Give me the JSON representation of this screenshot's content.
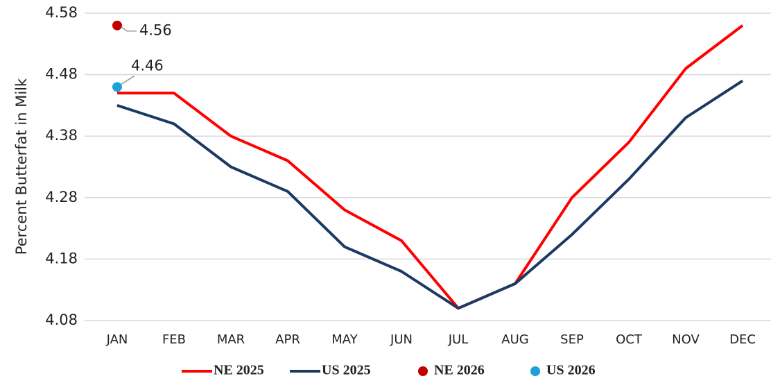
{
  "chart_data": {
    "type": "line",
    "y_label": "Percent Butterfat in Milk",
    "categories": [
      "JAN",
      "FEB",
      "MAR",
      "APR",
      "MAY",
      "JUN",
      "JUL",
      "AUG",
      "SEP",
      "OCT",
      "NOV",
      "DEC"
    ],
    "series": [
      {
        "name": "NE 2025",
        "color": "#ff0000",
        "style": "line",
        "values": [
          4.45,
          4.45,
          4.38,
          4.34,
          4.26,
          4.21,
          4.1,
          4.14,
          4.28,
          4.37,
          4.49,
          4.56
        ]
      },
      {
        "name": "US 2025",
        "color": "#1b3a63",
        "style": "line",
        "values": [
          4.43,
          4.4,
          4.33,
          4.29,
          4.2,
          4.16,
          4.1,
          4.14,
          4.22,
          4.31,
          4.41,
          4.47
        ]
      },
      {
        "name": "NE 2026",
        "color": "#c00000",
        "style": "marker",
        "data_labels": true,
        "values": [
          4.56,
          null,
          null,
          null,
          null,
          null,
          null,
          null,
          null,
          null,
          null,
          null
        ]
      },
      {
        "name": "US 2026",
        "color": "#1ca0dc",
        "style": "marker",
        "data_labels": true,
        "values": [
          4.46,
          null,
          null,
          null,
          null,
          null,
          null,
          null,
          null,
          null,
          null,
          null
        ]
      }
    ],
    "ylim": [
      4.08,
      4.58
    ],
    "yticks": [
      4.08,
      4.18,
      4.28,
      4.38,
      4.48,
      4.58
    ],
    "grid": true,
    "legend": "bottom"
  }
}
